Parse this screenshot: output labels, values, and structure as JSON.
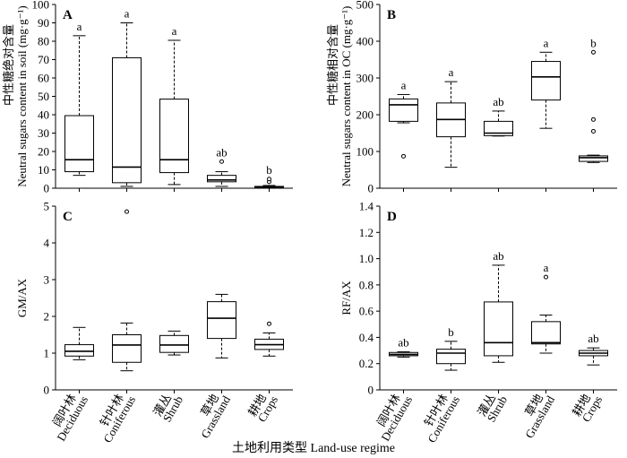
{
  "figure": {
    "xlabel": "土地利用类型 Land-use regime",
    "categories": [
      {
        "zh": "阔叶林",
        "en": "Deciduous"
      },
      {
        "zh": "针叶林",
        "en": "Coniferous"
      },
      {
        "zh": "灌丛",
        "en": "Shrub"
      },
      {
        "zh": "草地",
        "en": "Grassland"
      },
      {
        "zh": "耕地",
        "en": "Crops"
      }
    ]
  },
  "chart_data": [
    {
      "panel": "A",
      "type": "box",
      "ylabel_zh": "中性糖绝对含量",
      "ylabel_en": "Neutral sugars content in soil (mg·g⁻¹)",
      "ylim": [
        0,
        100
      ],
      "yticks": [
        0,
        10,
        20,
        30,
        40,
        50,
        60,
        70,
        80,
        90,
        100
      ],
      "boxes": [
        {
          "min": 7,
          "q1": 9,
          "median": 15.5,
          "q3": 39.5,
          "max": 83,
          "outliers": [],
          "letter": "a"
        },
        {
          "min": 1,
          "q1": 3,
          "median": 11.5,
          "q3": 71,
          "max": 90,
          "outliers": [],
          "letter": "a"
        },
        {
          "min": 2,
          "q1": 8.5,
          "median": 15.5,
          "q3": 48.5,
          "max": 80.5,
          "outliers": [],
          "letter": "a"
        },
        {
          "min": 1,
          "q1": 3.5,
          "median": 4.5,
          "q3": 7,
          "max": 9,
          "outliers": [
            14.5
          ],
          "letter": "ab"
        },
        {
          "min": 0,
          "q1": 0.3,
          "median": 0.8,
          "q3": 1,
          "max": 1.5,
          "outliers": [
            3.5,
            5
          ],
          "letter": "b"
        }
      ]
    },
    {
      "panel": "B",
      "type": "box",
      "ylabel_zh": "中性糖相对含量",
      "ylabel_en": "Neutral sugars content in OC (mg·g⁻¹)",
      "ylim": [
        0,
        500
      ],
      "yticks": [
        0,
        100,
        200,
        300,
        400,
        500
      ],
      "boxes": [
        {
          "min": 178,
          "q1": 182,
          "median": 227,
          "q3": 243,
          "max": 255,
          "outliers": [
            87
          ],
          "letter": "a"
        },
        {
          "min": 57,
          "q1": 140,
          "median": 187,
          "q3": 232,
          "max": 290,
          "outliers": [],
          "letter": "a"
        },
        {
          "min": 142,
          "q1": 143,
          "median": 150,
          "q3": 182,
          "max": 210,
          "outliers": [],
          "letter": "ab"
        },
        {
          "min": 163,
          "q1": 240,
          "median": 303,
          "q3": 345,
          "max": 370,
          "outliers": [],
          "letter": "a"
        },
        {
          "min": 70,
          "q1": 73,
          "median": 83,
          "q3": 88,
          "max": 90,
          "outliers": [
            155,
            187,
            370
          ],
          "letter": "b"
        }
      ]
    },
    {
      "panel": "C",
      "type": "box",
      "ylabel_en": "GM/AX",
      "ylim": [
        0,
        5
      ],
      "yticks": [
        0,
        1,
        2,
        3,
        4,
        5
      ],
      "boxes": [
        {
          "min": 0.82,
          "q1": 0.92,
          "median": 1.05,
          "q3": 1.23,
          "max": 1.7,
          "outliers": [],
          "letter": ""
        },
        {
          "min": 0.52,
          "q1": 0.75,
          "median": 1.22,
          "q3": 1.5,
          "max": 1.82,
          "outliers": [
            4.85
          ],
          "letter": ""
        },
        {
          "min": 0.95,
          "q1": 1.02,
          "median": 1.22,
          "q3": 1.48,
          "max": 1.6,
          "outliers": [],
          "letter": ""
        },
        {
          "min": 0.87,
          "q1": 1.4,
          "median": 1.95,
          "q3": 2.4,
          "max": 2.6,
          "outliers": [],
          "letter": ""
        },
        {
          "min": 0.92,
          "q1": 1.1,
          "median": 1.23,
          "q3": 1.38,
          "max": 1.55,
          "outliers": [
            1.8
          ],
          "letter": ""
        }
      ]
    },
    {
      "panel": "D",
      "type": "box",
      "ylabel_en": "RF/AX",
      "ylim": [
        0,
        1.4
      ],
      "yticks": [
        "0",
        "0.2",
        "0.4",
        "0.6",
        "0.8",
        "1.0",
        "1.2",
        "1.4"
      ],
      "boxes": [
        {
          "min": 0.25,
          "q1": 0.26,
          "median": 0.27,
          "q3": 0.285,
          "max": 0.29,
          "outliers": [],
          "letter": "ab"
        },
        {
          "min": 0.15,
          "q1": 0.2,
          "median": 0.28,
          "q3": 0.31,
          "max": 0.37,
          "outliers": [],
          "letter": "b"
        },
        {
          "min": 0.21,
          "q1": 0.26,
          "median": 0.36,
          "q3": 0.67,
          "max": 0.95,
          "outliers": [],
          "letter": "ab"
        },
        {
          "min": 0.28,
          "q1": 0.35,
          "median": 0.36,
          "q3": 0.52,
          "max": 0.57,
          "outliers": [
            0.86
          ],
          "letter": "a"
        },
        {
          "min": 0.19,
          "q1": 0.26,
          "median": 0.28,
          "q3": 0.3,
          "max": 0.32,
          "outliers": [],
          "letter": "ab"
        }
      ]
    }
  ]
}
